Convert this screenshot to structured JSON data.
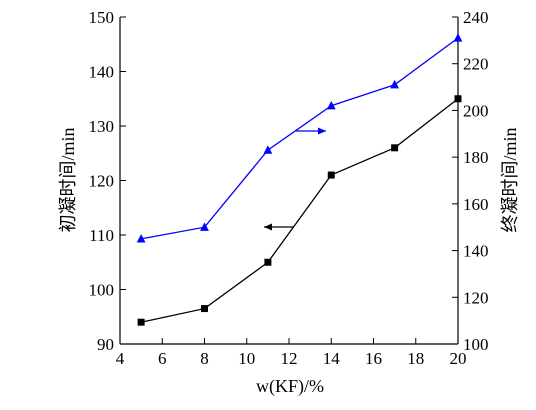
{
  "chart_data": {
    "type": "line",
    "title": "",
    "xlabel": "w(KF)/%",
    "ylabel": "初凝时间/min",
    "y2label": "终凝时间/min",
    "x": [
      5,
      8,
      11,
      14,
      17,
      20
    ],
    "xlim": [
      4,
      20
    ],
    "ylim": [
      90,
      150
    ],
    "y2lim": [
      100,
      240
    ],
    "xticks": [
      "4",
      "6",
      "8",
      "10",
      "12",
      "14",
      "16",
      "18",
      "20"
    ],
    "yticks": [
      "90",
      "100",
      "110",
      "120",
      "130",
      "140",
      "150"
    ],
    "y2ticks": [
      "100",
      "120",
      "140",
      "160",
      "180",
      "200",
      "220",
      "240"
    ],
    "grid": false,
    "series": [
      {
        "axis": "left",
        "marker": "square",
        "color": "#000000",
        "values": [
          94,
          96.5,
          105,
          121,
          126,
          135
        ]
      },
      {
        "axis": "right",
        "marker": "triangle",
        "color": "#0000ff",
        "values": [
          145,
          150,
          183,
          202,
          211,
          231
        ]
      }
    ],
    "annotations": [
      {
        "type": "arrow",
        "direction": "left",
        "color": "#000000",
        "points_to": "left-axis"
      },
      {
        "type": "arrow",
        "direction": "right",
        "color": "#0000ff",
        "points_to": "right-axis"
      }
    ]
  }
}
